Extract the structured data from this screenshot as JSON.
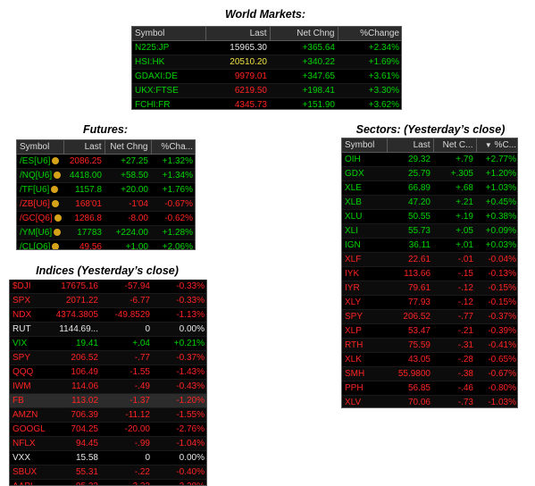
{
  "world": {
    "title": "World Markets:",
    "headers": [
      "Symbol",
      "Last",
      "Net Chng",
      "%Change"
    ],
    "rows": [
      {
        "sym": "N225:JP",
        "last": "15965.30",
        "chg": "+365.64",
        "pct": "+2.34%",
        "cls": "up",
        "lastcls": "fl"
      },
      {
        "sym": "HSI:HK",
        "last": "20510.20",
        "chg": "+340.22",
        "pct": "+1.69%",
        "cls": "up",
        "lastcls": "ylw"
      },
      {
        "sym": "GDAXI:DE",
        "last": "9979.01",
        "chg": "+347.65",
        "pct": "+3.61%",
        "cls": "up",
        "lastcls": "dn"
      },
      {
        "sym": "UKX:FTSE",
        "last": "6219.50",
        "chg": "+198.41",
        "pct": "+3.30%",
        "cls": "up",
        "lastcls": "dn"
      },
      {
        "sym": "FCHI:FR",
        "last": "4345.73",
        "chg": "+151.90",
        "pct": "+3.62%",
        "cls": "up",
        "lastcls": "dn"
      }
    ]
  },
  "futures": {
    "title": "Futures:",
    "headers": [
      "Symbol",
      "Last",
      "Net Chng",
      "%Cha..."
    ],
    "rows": [
      {
        "sym": "/ES[U6]",
        "last": "2086.25",
        "chg": "+27.25",
        "pct": "+1.32%",
        "cls": "up",
        "lastcls": "dn"
      },
      {
        "sym": "/NQ[U6]",
        "last": "4418.00",
        "chg": "+58.50",
        "pct": "+1.34%",
        "cls": "up",
        "lastcls": "up"
      },
      {
        "sym": "/TF[U6]",
        "last": "1157.8",
        "chg": "+20.00",
        "pct": "+1.76%",
        "cls": "up",
        "lastcls": "up"
      },
      {
        "sym": "/ZB[U6]",
        "last": "168'01",
        "chg": "-1'04",
        "pct": "-0.67%",
        "cls": "dn",
        "lastcls": "dn"
      },
      {
        "sym": "/GC[Q6]",
        "last": "1286.8",
        "chg": "-8.00",
        "pct": "-0.62%",
        "cls": "dn",
        "lastcls": "dn"
      },
      {
        "sym": "/YM[U6]",
        "last": "17783",
        "chg": "+224.00",
        "pct": "+1.28%",
        "cls": "up",
        "lastcls": "up"
      },
      {
        "sym": "/CL[Q6]",
        "last": "49.56",
        "chg": "+1.00",
        "pct": "+2.06%",
        "cls": "up",
        "lastcls": "dn"
      }
    ]
  },
  "indices": {
    "title": "Indices (Yesterday’s close)",
    "rows": [
      {
        "sym": "$DJI",
        "last": "17675.16",
        "chg": "-57.94",
        "pct": "-0.33%",
        "cls": "dn"
      },
      {
        "sym": "SPX",
        "last": "2071.22",
        "chg": "-6.77",
        "pct": "-0.33%",
        "cls": "dn"
      },
      {
        "sym": "NDX",
        "last": "4374.3805",
        "chg": "-49.8529",
        "pct": "-1.13%",
        "cls": "dn"
      },
      {
        "sym": "RUT",
        "last": "1144.69...",
        "chg": "0",
        "pct": "0.00%",
        "cls": "fl"
      },
      {
        "sym": "VIX",
        "last": "19.41",
        "chg": "+.04",
        "pct": "+0.21%",
        "cls": "up"
      },
      {
        "sym": "SPY",
        "last": "206.52",
        "chg": "-.77",
        "pct": "-0.37%",
        "cls": "dn"
      },
      {
        "sym": "QQQ",
        "last": "106.49",
        "chg": "-1.55",
        "pct": "-1.43%",
        "cls": "dn"
      },
      {
        "sym": "IWM",
        "last": "114.06",
        "chg": "-.49",
        "pct": "-0.43%",
        "cls": "dn"
      },
      {
        "sym": "FB",
        "last": "113.02",
        "chg": "-1.37",
        "pct": "-1.20%",
        "cls": "dn"
      },
      {
        "sym": "AMZN",
        "last": "706.39",
        "chg": "-11.12",
        "pct": "-1.55%",
        "cls": "dn"
      },
      {
        "sym": "GOOGL",
        "last": "704.25",
        "chg": "-20.00",
        "pct": "-2.76%",
        "cls": "dn"
      },
      {
        "sym": "NFLX",
        "last": "94.45",
        "chg": "-.99",
        "pct": "-1.04%",
        "cls": "dn"
      },
      {
        "sym": "VXX",
        "last": "15.58",
        "chg": "0",
        "pct": "0.00%",
        "cls": "fl"
      },
      {
        "sym": "SBUX",
        "last": "55.31",
        "chg": "-.22",
        "pct": "-0.40%",
        "cls": "dn"
      },
      {
        "sym": "AAPL",
        "last": "95.33",
        "chg": "-2.22",
        "pct": "-2.28%",
        "cls": "dn"
      }
    ]
  },
  "sectors": {
    "title": "Sectors: (Yesterday’s close)",
    "headers": [
      "Symbol",
      "Last",
      "Net C...",
      "%C..."
    ],
    "sort_indicator": "▼",
    "rows": [
      {
        "sym": "OIH",
        "last": "29.32",
        "chg": "+.79",
        "pct": "+2.77%",
        "cls": "up"
      },
      {
        "sym": "GDX",
        "last": "25.79",
        "chg": "+.305",
        "pct": "+1.20%",
        "cls": "up"
      },
      {
        "sym": "XLE",
        "last": "66.89",
        "chg": "+.68",
        "pct": "+1.03%",
        "cls": "up"
      },
      {
        "sym": "XLB",
        "last": "47.20",
        "chg": "+.21",
        "pct": "+0.45%",
        "cls": "up"
      },
      {
        "sym": "XLU",
        "last": "50.55",
        "chg": "+.19",
        "pct": "+0.38%",
        "cls": "up"
      },
      {
        "sym": "XLI",
        "last": "55.73",
        "chg": "+.05",
        "pct": "+0.09%",
        "cls": "up"
      },
      {
        "sym": "IGN",
        "last": "36.11",
        "chg": "+.01",
        "pct": "+0.03%",
        "cls": "up"
      },
      {
        "sym": "XLF",
        "last": "22.61",
        "chg": "-.01",
        "pct": "-0.04%",
        "cls": "dn"
      },
      {
        "sym": "IYK",
        "last": "113.66",
        "chg": "-.15",
        "pct": "-0.13%",
        "cls": "dn"
      },
      {
        "sym": "IYR",
        "last": "79.61",
        "chg": "-.12",
        "pct": "-0.15%",
        "cls": "dn"
      },
      {
        "sym": "XLY",
        "last": "77.93",
        "chg": "-.12",
        "pct": "-0.15%",
        "cls": "dn"
      },
      {
        "sym": "SPY",
        "last": "206.52",
        "chg": "-.77",
        "pct": "-0.37%",
        "cls": "dn"
      },
      {
        "sym": "XLP",
        "last": "53.47",
        "chg": "-.21",
        "pct": "-0.39%",
        "cls": "dn"
      },
      {
        "sym": "RTH",
        "last": "75.59",
        "chg": "-.31",
        "pct": "-0.41%",
        "cls": "dn"
      },
      {
        "sym": "XLK",
        "last": "43.05",
        "chg": "-.28",
        "pct": "-0.65%",
        "cls": "dn"
      },
      {
        "sym": "SMH",
        "last": "55.9800",
        "chg": "-.38",
        "pct": "-0.67%",
        "cls": "dn"
      },
      {
        "sym": "PPH",
        "last": "56.85",
        "chg": "-.46",
        "pct": "-0.80%",
        "cls": "dn"
      },
      {
        "sym": "XLV",
        "last": "70.06",
        "chg": "-.73",
        "pct": "-1.03%",
        "cls": "dn"
      },
      {
        "sym": "BBH",
        "last": "101.51",
        "chg": "-1.78",
        "pct": "-1.72%",
        "cls": "dn"
      }
    ]
  },
  "colors": {
    "up": "#00d400",
    "down": "#ff2323",
    "flat": "#e8e8e8",
    "badge": "#d6a21a",
    "header_bg": "#2b2b2b"
  }
}
